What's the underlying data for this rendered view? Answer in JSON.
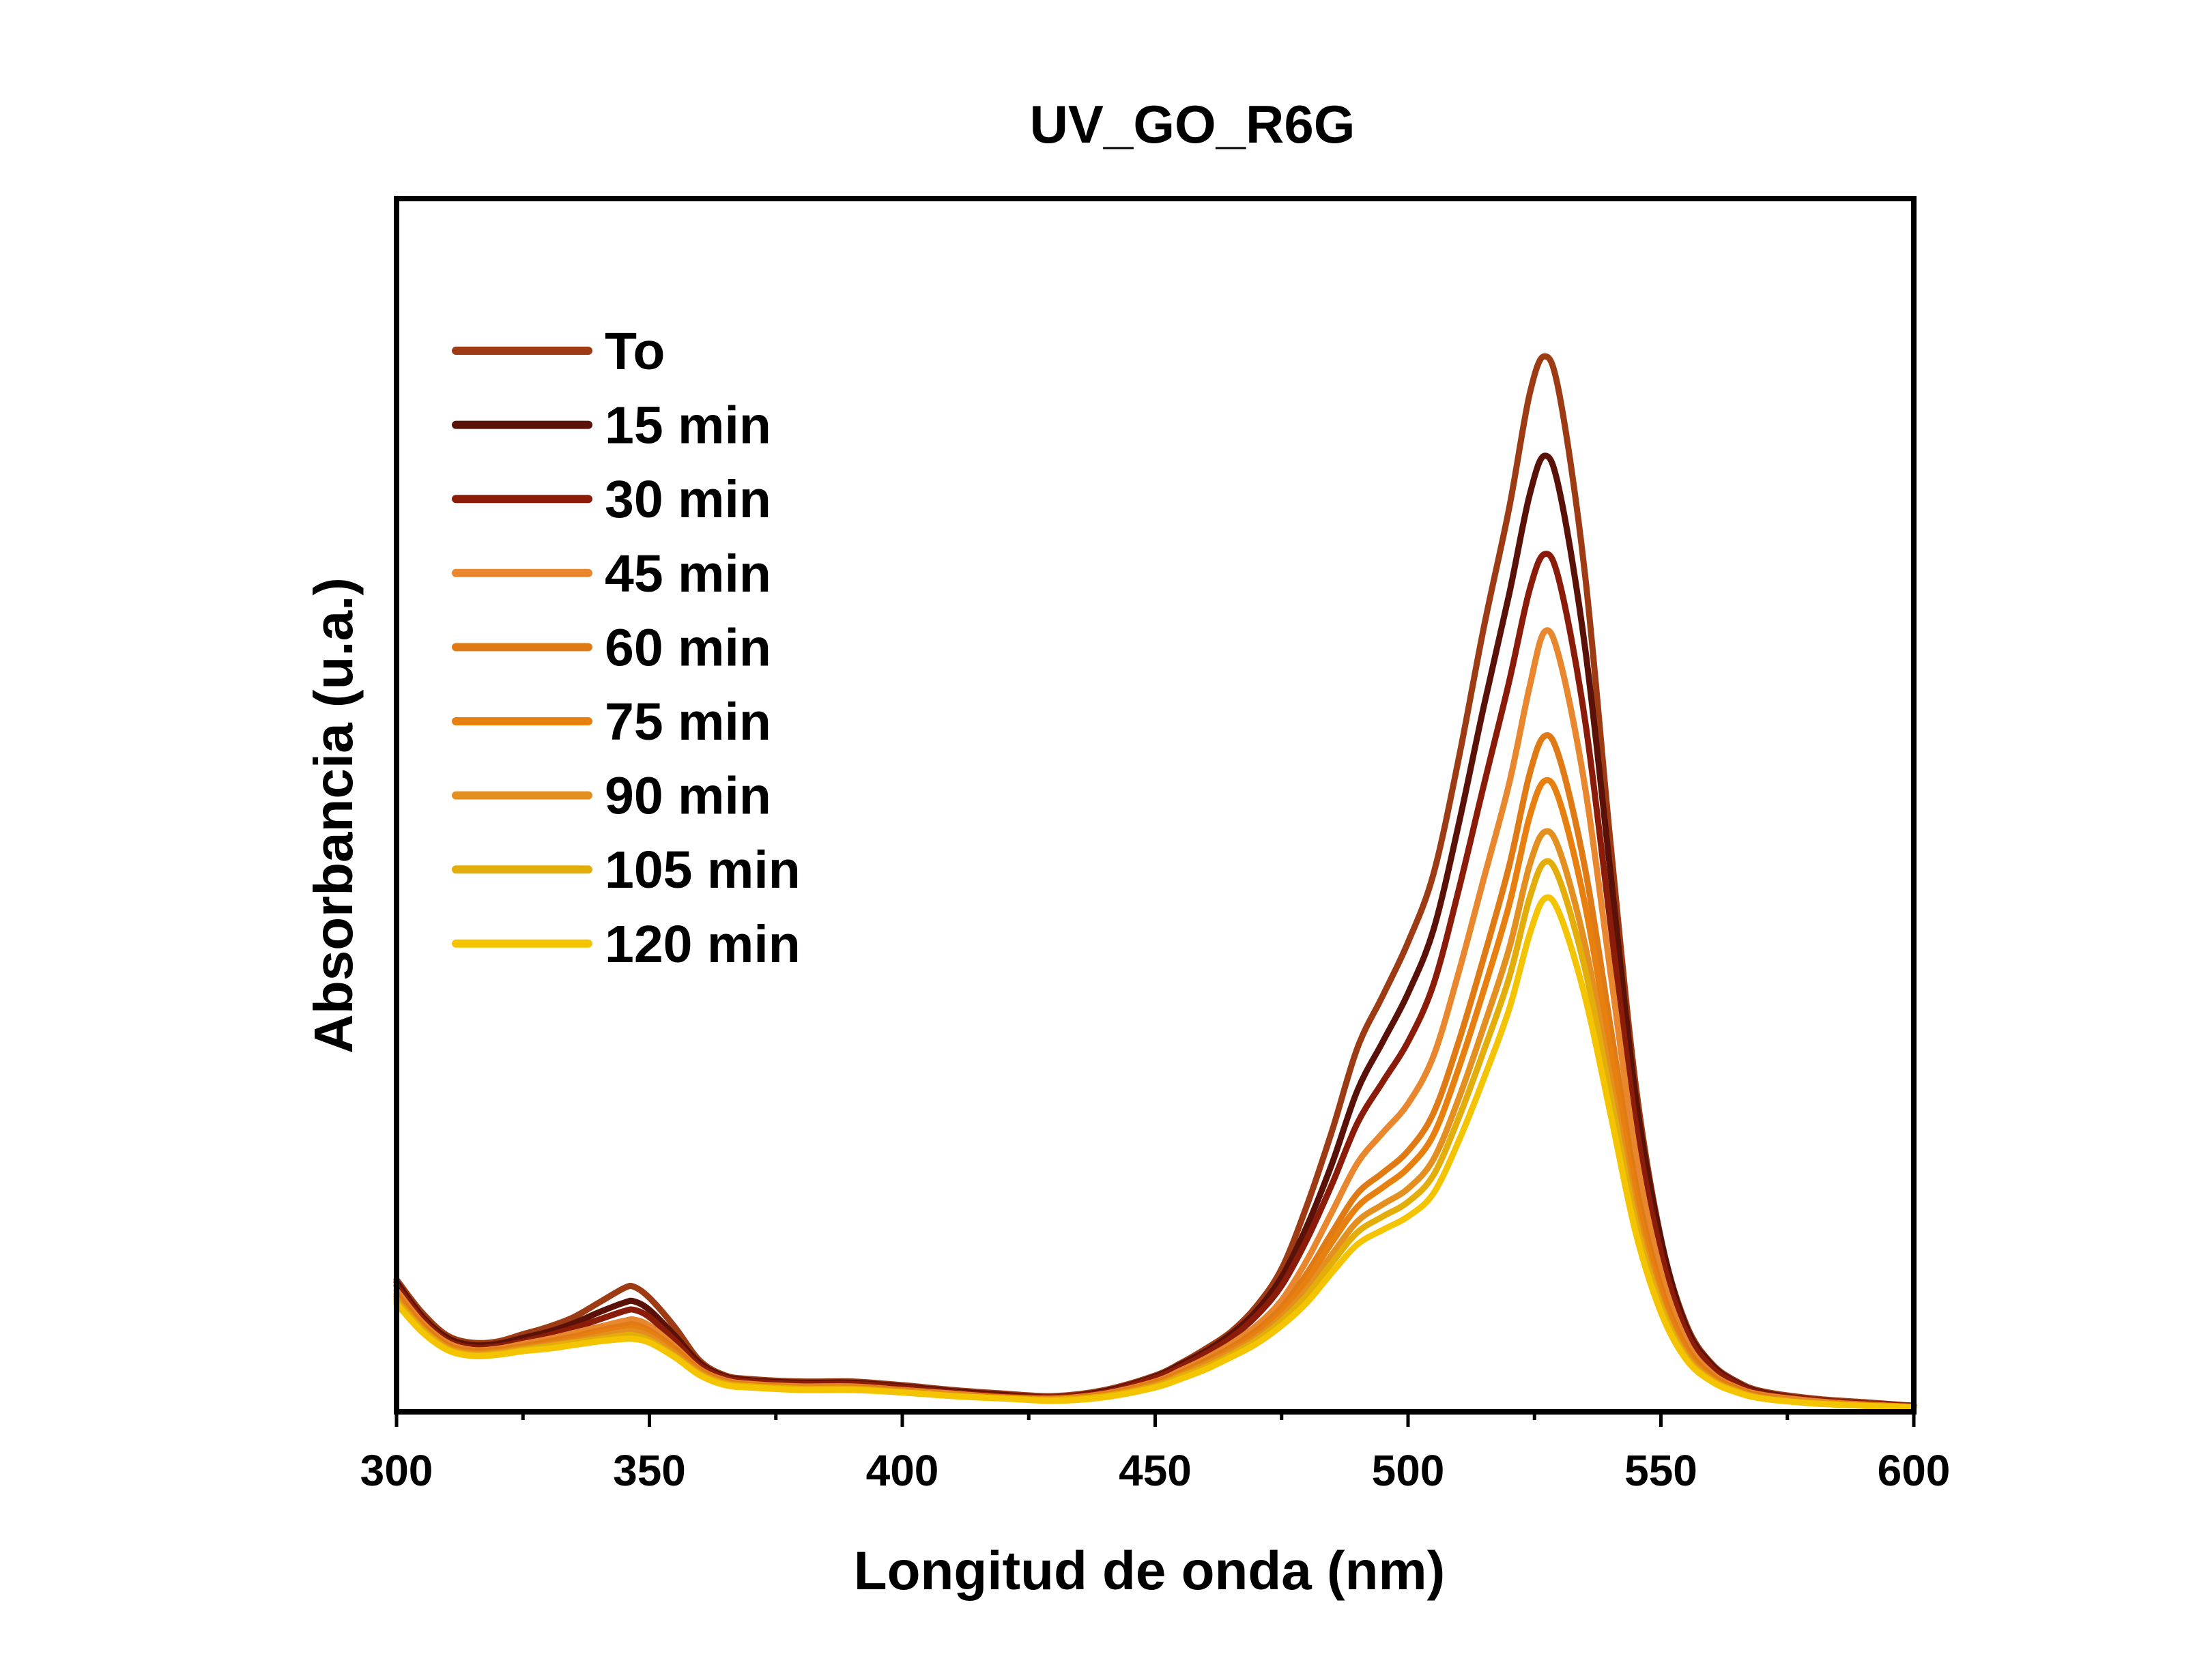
{
  "chart_data": {
    "type": "line",
    "title": "UV_GO_R6G",
    "xlabel": "Longitud de onda (nm)",
    "ylabel": "Absorbancia (u.a.)",
    "xlim": [
      300,
      600
    ],
    "ylim": [
      0,
      1.0
    ],
    "xticks": [
      300,
      350,
      400,
      450,
      500,
      550,
      600
    ],
    "xtick_labels": [
      "300",
      "350",
      "400",
      "450",
      "500",
      "550",
      "600"
    ],
    "y_tick_labels_shown": false,
    "grid": false,
    "legend_position": "top-left",
    "x": [
      300,
      305,
      310,
      315,
      320,
      325,
      330,
      335,
      340,
      345,
      347,
      350,
      355,
      360,
      365,
      370,
      380,
      390,
      400,
      410,
      420,
      430,
      440,
      450,
      455,
      460,
      465,
      470,
      475,
      480,
      485,
      490,
      495,
      500,
      505,
      510,
      515,
      520,
      524,
      527,
      530,
      535,
      540,
      545,
      550,
      555,
      560,
      565,
      570,
      580,
      590,
      600
    ],
    "series": [
      {
        "name": "To",
        "color": "#9c3b14",
        "values": [
          0.109,
          0.082,
          0.063,
          0.057,
          0.058,
          0.064,
          0.07,
          0.078,
          0.09,
          0.102,
          0.103,
          0.094,
          0.07,
          0.042,
          0.03,
          0.027,
          0.025,
          0.025,
          0.022,
          0.018,
          0.015,
          0.013,
          0.018,
          0.03,
          0.04,
          0.052,
          0.066,
          0.087,
          0.118,
          0.17,
          0.232,
          0.3,
          0.343,
          0.387,
          0.443,
          0.538,
          0.647,
          0.745,
          0.838,
          0.87,
          0.837,
          0.69,
          0.47,
          0.27,
          0.143,
          0.072,
          0.04,
          0.025,
          0.017,
          0.011,
          0.008,
          0.005
        ]
      },
      {
        "name": "15 min",
        "color": "#5a1208",
        "values": [
          0.107,
          0.079,
          0.061,
          0.055,
          0.056,
          0.061,
          0.066,
          0.073,
          0.082,
          0.09,
          0.091,
          0.084,
          0.063,
          0.04,
          0.029,
          0.026,
          0.024,
          0.024,
          0.021,
          0.017,
          0.014,
          0.012,
          0.017,
          0.029,
          0.039,
          0.05,
          0.064,
          0.083,
          0.111,
          0.153,
          0.205,
          0.265,
          0.305,
          0.345,
          0.397,
          0.484,
          0.582,
          0.674,
          0.755,
          0.788,
          0.758,
          0.63,
          0.445,
          0.26,
          0.142,
          0.07,
          0.039,
          0.024,
          0.016,
          0.01,
          0.007,
          0.005
        ]
      },
      {
        "name": "30 min",
        "color": "#8c1c0a",
        "values": [
          0.104,
          0.077,
          0.059,
          0.053,
          0.054,
          0.058,
          0.063,
          0.069,
          0.076,
          0.083,
          0.084,
          0.078,
          0.059,
          0.038,
          0.028,
          0.025,
          0.023,
          0.023,
          0.02,
          0.016,
          0.013,
          0.012,
          0.016,
          0.028,
          0.037,
          0.048,
          0.061,
          0.079,
          0.104,
          0.142,
          0.188,
          0.238,
          0.272,
          0.305,
          0.352,
          0.43,
          0.517,
          0.602,
          0.677,
          0.707,
          0.683,
          0.57,
          0.403,
          0.238,
          0.131,
          0.066,
          0.037,
          0.023,
          0.015,
          0.01,
          0.007,
          0.005
        ]
      },
      {
        "name": "45 min",
        "color": "#e8872d",
        "values": [
          0.1,
          0.074,
          0.057,
          0.051,
          0.052,
          0.056,
          0.06,
          0.065,
          0.07,
          0.075,
          0.076,
          0.071,
          0.054,
          0.035,
          0.026,
          0.023,
          0.021,
          0.021,
          0.018,
          0.015,
          0.012,
          0.011,
          0.015,
          0.025,
          0.034,
          0.044,
          0.056,
          0.071,
          0.092,
          0.125,
          0.165,
          0.205,
          0.23,
          0.254,
          0.293,
          0.362,
          0.44,
          0.518,
          0.597,
          0.643,
          0.62,
          0.515,
          0.363,
          0.213,
          0.115,
          0.058,
          0.032,
          0.02,
          0.014,
          0.009,
          0.006,
          0.004
        ]
      },
      {
        "name": "60 min",
        "color": "#e07a14",
        "values": [
          0.097,
          0.072,
          0.055,
          0.05,
          0.051,
          0.054,
          0.058,
          0.062,
          0.067,
          0.071,
          0.072,
          0.067,
          0.052,
          0.034,
          0.025,
          0.022,
          0.02,
          0.02,
          0.018,
          0.014,
          0.012,
          0.011,
          0.014,
          0.024,
          0.032,
          0.042,
          0.053,
          0.067,
          0.086,
          0.114,
          0.148,
          0.18,
          0.197,
          0.215,
          0.246,
          0.305,
          0.375,
          0.45,
          0.525,
          0.557,
          0.538,
          0.448,
          0.318,
          0.188,
          0.103,
          0.053,
          0.03,
          0.019,
          0.013,
          0.008,
          0.006,
          0.004
        ]
      },
      {
        "name": "75 min",
        "color": "#e8800f",
        "values": [
          0.095,
          0.07,
          0.054,
          0.049,
          0.05,
          0.053,
          0.056,
          0.06,
          0.065,
          0.068,
          0.069,
          0.065,
          0.05,
          0.033,
          0.024,
          0.022,
          0.02,
          0.02,
          0.017,
          0.014,
          0.012,
          0.01,
          0.014,
          0.023,
          0.031,
          0.04,
          0.051,
          0.064,
          0.082,
          0.108,
          0.14,
          0.169,
          0.185,
          0.201,
          0.228,
          0.283,
          0.348,
          0.418,
          0.49,
          0.52,
          0.503,
          0.418,
          0.298,
          0.177,
          0.097,
          0.05,
          0.028,
          0.018,
          0.012,
          0.008,
          0.006,
          0.004
        ]
      },
      {
        "name": "90 min",
        "color": "#e39020",
        "values": [
          0.093,
          0.069,
          0.053,
          0.048,
          0.049,
          0.052,
          0.055,
          0.058,
          0.062,
          0.066,
          0.066,
          0.062,
          0.048,
          0.032,
          0.024,
          0.021,
          0.019,
          0.019,
          0.017,
          0.014,
          0.011,
          0.01,
          0.013,
          0.022,
          0.03,
          0.039,
          0.049,
          0.061,
          0.078,
          0.101,
          0.13,
          0.157,
          0.171,
          0.184,
          0.208,
          0.258,
          0.318,
          0.382,
          0.45,
          0.478,
          0.462,
          0.385,
          0.275,
          0.164,
          0.09,
          0.047,
          0.027,
          0.017,
          0.012,
          0.008,
          0.005,
          0.004
        ]
      },
      {
        "name": "105 min",
        "color": "#e3ae0a",
        "values": [
          0.091,
          0.068,
          0.052,
          0.047,
          0.048,
          0.051,
          0.054,
          0.057,
          0.06,
          0.063,
          0.063,
          0.059,
          0.046,
          0.031,
          0.023,
          0.021,
          0.019,
          0.019,
          0.016,
          0.013,
          0.011,
          0.01,
          0.013,
          0.021,
          0.029,
          0.037,
          0.047,
          0.059,
          0.075,
          0.096,
          0.123,
          0.148,
          0.161,
          0.173,
          0.195,
          0.242,
          0.298,
          0.358,
          0.423,
          0.453,
          0.438,
          0.365,
          0.262,
          0.157,
          0.087,
          0.045,
          0.026,
          0.017,
          0.011,
          0.007,
          0.005,
          0.004
        ]
      },
      {
        "name": "120 min",
        "color": "#f5c400",
        "values": [
          0.089,
          0.066,
          0.051,
          0.046,
          0.047,
          0.05,
          0.052,
          0.055,
          0.058,
          0.06,
          0.06,
          0.057,
          0.045,
          0.03,
          0.022,
          0.02,
          0.018,
          0.018,
          0.016,
          0.013,
          0.011,
          0.009,
          0.012,
          0.02,
          0.027,
          0.035,
          0.045,
          0.056,
          0.071,
          0.09,
          0.115,
          0.138,
          0.15,
          0.161,
          0.18,
          0.223,
          0.275,
          0.332,
          0.393,
          0.423,
          0.41,
          0.342,
          0.246,
          0.148,
          0.082,
          0.043,
          0.025,
          0.016,
          0.011,
          0.007,
          0.005,
          0.004
        ]
      }
    ]
  }
}
